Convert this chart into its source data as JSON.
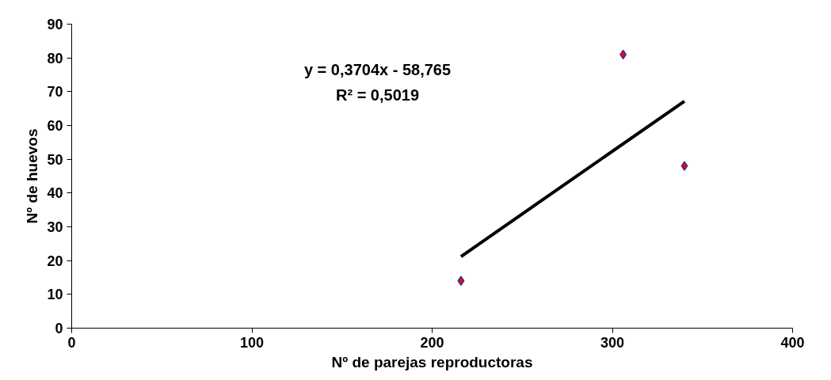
{
  "chart_data": {
    "type": "scatter",
    "xlabel": "Nº de parejas reproductoras",
    "ylabel": "Nº de huevos",
    "series": [
      {
        "color": "#ff0000",
        "marker": "diamond",
        "x": [
          216,
          306,
          340
        ],
        "values": [
          14,
          81,
          48
        ]
      },
      {
        "type": "line",
        "color": "#000000",
        "x": [
          216,
          340
        ],
        "values": [
          21.2,
          67.2
        ]
      }
    ],
    "annotations": [
      "y = 0,3704x - 58,765",
      "R² = 0,5019"
    ],
    "xlim": [
      0,
      400
    ],
    "xticks": [
      0,
      100,
      200,
      300,
      400
    ],
    "ylim": [
      0,
      90
    ],
    "yticks": [
      0,
      10,
      20,
      30,
      40,
      50,
      60,
      70,
      80,
      90
    ],
    "grid": false
  }
}
